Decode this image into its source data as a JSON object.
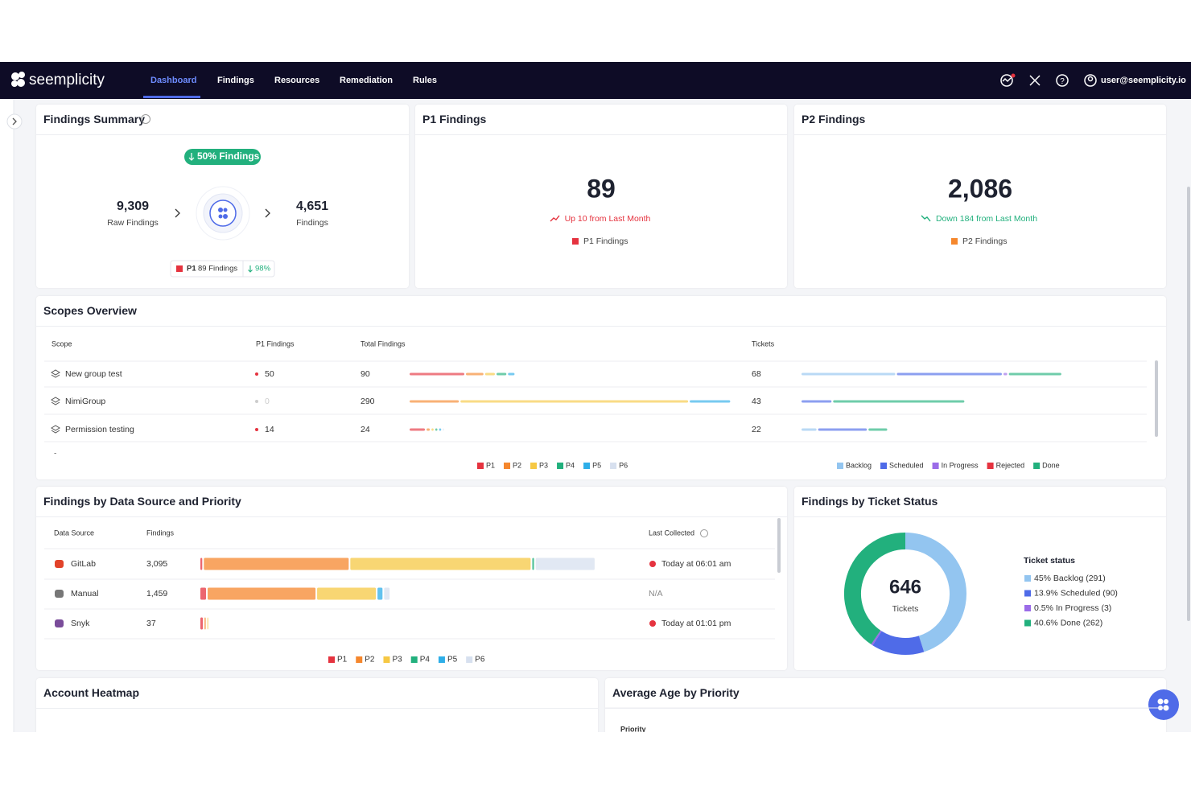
{
  "nav": {
    "logo": "seemplicity",
    "tabs": [
      "Dashboard",
      "Findings",
      "Resources",
      "Remediation",
      "Rules"
    ],
    "active_tab": 0,
    "user": "user@seemplicity.io"
  },
  "findings_summary": {
    "title": "Findings Summary",
    "badge": "50% Findings",
    "raw_value": "9,309",
    "raw_label": "Raw Findings",
    "value": "4,651",
    "label": "Findings",
    "p1_tag": "P1",
    "p1_text": "89 Findings",
    "p1_change": "98%"
  },
  "p1_card": {
    "title": "P1 Findings",
    "value": "89",
    "change": "Up 10 from Last Month",
    "legend": "P1 Findings",
    "color": "#e5333f",
    "change_color": "#e5333f"
  },
  "p2_card": {
    "title": "P2 Findings",
    "value": "2,086",
    "change": "Down 184 from Last Month",
    "legend": "P2 Findings",
    "color": "#f5872d",
    "change_color": "#22b07d"
  },
  "priorities": [
    {
      "name": "P1",
      "color": "#e5333f"
    },
    {
      "name": "P2",
      "color": "#f5872d"
    },
    {
      "name": "P3",
      "color": "#f6c844"
    },
    {
      "name": "P4",
      "color": "#22b07d"
    },
    {
      "name": "P5",
      "color": "#2eaee8"
    },
    {
      "name": "P6",
      "color": "#d7e0ef"
    }
  ],
  "ticket_statuses": [
    {
      "name": "Backlog",
      "color": "#93c5f0"
    },
    {
      "name": "Scheduled",
      "color": "#4f6be8"
    },
    {
      "name": "In Progress",
      "color": "#9b6ce8"
    },
    {
      "name": "Rejected",
      "color": "#e5333f"
    },
    {
      "name": "Done",
      "color": "#22b07d"
    }
  ],
  "scopes": {
    "title": "Scopes Overview",
    "columns": [
      "Scope",
      "P1 Findings",
      "Total Findings",
      "Tickets"
    ],
    "rows": [
      {
        "name": "New group test",
        "p1": 50,
        "total": 90,
        "findings": [
          50,
          16,
          9,
          9,
          6,
          0
        ],
        "tickets": 68,
        "ticket_counts": [
          25,
          28,
          1,
          0,
          14
        ]
      },
      {
        "name": "NimiGroup",
        "p1": 0,
        "total": 290,
        "findings": [
          0,
          45,
          208,
          0,
          37,
          0
        ],
        "tickets": 43,
        "ticket_counts": [
          0,
          8,
          0,
          0,
          35
        ]
      },
      {
        "name": "Permission testing",
        "p1": 14,
        "total": 24,
        "findings": [
          14,
          3,
          2,
          2,
          2,
          1
        ],
        "tickets": 22,
        "ticket_counts": [
          4,
          13,
          0,
          0,
          5
        ]
      }
    ],
    "more": "-"
  },
  "data_sources": {
    "title": "Findings by Data Source and Priority",
    "columns": [
      "Data Source",
      "Findings",
      "Last Collected"
    ],
    "rows": [
      {
        "name": "GitLab",
        "findings": "3,095",
        "counts": [
          15,
          1156,
          1439,
          15,
          0,
          470
        ],
        "last_collected": "Today at 06:01 am",
        "alert": true
      },
      {
        "name": "Manual",
        "findings": "1,459",
        "counts": [
          45,
          861,
          469,
          0,
          40,
          44
        ],
        "last_collected": "N/A",
        "alert": false
      },
      {
        "name": "Snyk",
        "findings": "37",
        "counts": [
          20,
          10,
          7,
          0,
          0,
          0
        ],
        "last_collected": "Today at 01:01 pm",
        "alert": true
      }
    ]
  },
  "ticket_status": {
    "title": "Findings by Ticket Status",
    "total": "646",
    "total_label": "Tickets",
    "legend_title": "Ticket status",
    "segments": [
      {
        "label": "45% Backlog (291)",
        "value": 291,
        "color": "#93c5f0"
      },
      {
        "label": "13.9% Scheduled (90)",
        "value": 90,
        "color": "#4f6be8"
      },
      {
        "label": "0.5% In Progress (3)",
        "value": 3,
        "color": "#9b6ce8"
      },
      {
        "label": "40.6% Done (262)",
        "value": 262,
        "color": "#22b07d"
      }
    ]
  },
  "account_heatmap": {
    "title": "Account Heatmap"
  },
  "average_age": {
    "title": "Average Age by Priority",
    "axis_label": "Priority"
  }
}
